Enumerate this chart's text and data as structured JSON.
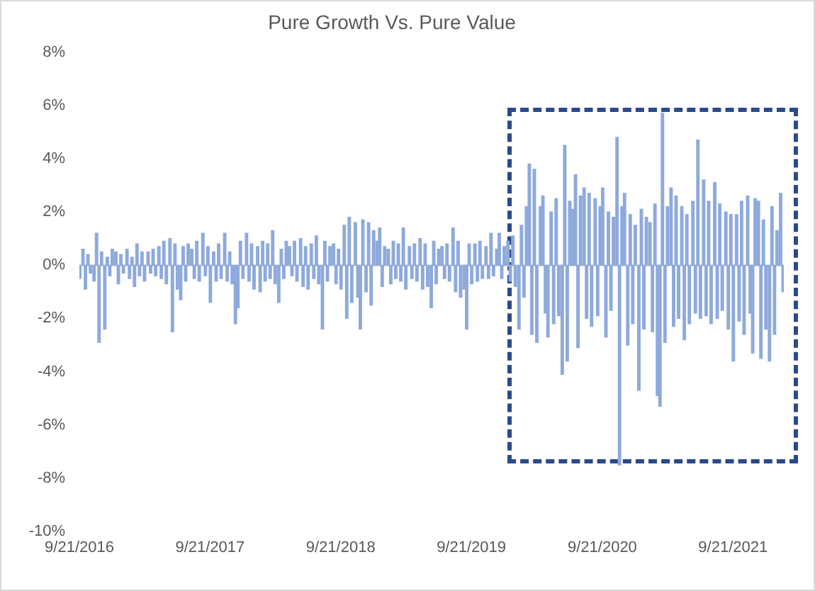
{
  "chart_data": {
    "type": "bar",
    "title": "Pure Growth Vs. Pure Value",
    "x": [
      "2016-09-22",
      "2016-10-01",
      "2016-10-08",
      "2016-10-15",
      "2016-10-22",
      "2016-11-01",
      "2016-11-08",
      "2016-11-15",
      "2016-11-22",
      "2016-12-01",
      "2016-12-08",
      "2016-12-15",
      "2016-12-22",
      "2017-01-01",
      "2017-01-08",
      "2017-01-15",
      "2017-01-22",
      "2017-02-01",
      "2017-02-08",
      "2017-02-15",
      "2017-02-22",
      "2017-03-01",
      "2017-03-08",
      "2017-03-15",
      "2017-03-22",
      "2017-04-01",
      "2017-04-08",
      "2017-04-15",
      "2017-04-22",
      "2017-05-01",
      "2017-05-08",
      "2017-05-15",
      "2017-05-22",
      "2017-06-01",
      "2017-06-08",
      "2017-06-15",
      "2017-06-22",
      "2017-07-01",
      "2017-07-08",
      "2017-07-15",
      "2017-07-22",
      "2017-08-01",
      "2017-08-08",
      "2017-08-15",
      "2017-08-22",
      "2017-09-01",
      "2017-09-08",
      "2017-09-15",
      "2017-09-22",
      "2017-10-01",
      "2017-10-08",
      "2017-10-15",
      "2017-10-22",
      "2017-11-01",
      "2017-11-08",
      "2017-11-15",
      "2017-11-22",
      "2017-12-01",
      "2017-12-08",
      "2017-12-15",
      "2017-12-22",
      "2018-01-01",
      "2018-01-08",
      "2018-01-15",
      "2018-01-22",
      "2018-02-01",
      "2018-02-08",
      "2018-02-15",
      "2018-02-22",
      "2018-03-01",
      "2018-03-08",
      "2018-03-15",
      "2018-03-22",
      "2018-04-01",
      "2018-04-08",
      "2018-04-15",
      "2018-04-22",
      "2018-05-01",
      "2018-05-08",
      "2018-05-15",
      "2018-05-22",
      "2018-06-01",
      "2018-06-08",
      "2018-06-15",
      "2018-06-22",
      "2018-07-01",
      "2018-07-08",
      "2018-07-15",
      "2018-07-22",
      "2018-08-01",
      "2018-08-08",
      "2018-08-15",
      "2018-08-22",
      "2018-09-01",
      "2018-09-08",
      "2018-09-15",
      "2018-09-22",
      "2018-10-01",
      "2018-10-08",
      "2018-10-15",
      "2018-10-22",
      "2018-11-01",
      "2018-11-08",
      "2018-11-15",
      "2018-11-22",
      "2018-12-01",
      "2018-12-08",
      "2018-12-15",
      "2018-12-22",
      "2019-01-01",
      "2019-01-08",
      "2019-01-15",
      "2019-01-22",
      "2019-02-01",
      "2019-02-08",
      "2019-02-15",
      "2019-02-22",
      "2019-03-01",
      "2019-03-08",
      "2019-03-15",
      "2019-03-22",
      "2019-04-01",
      "2019-04-08",
      "2019-04-15",
      "2019-04-22",
      "2019-05-01",
      "2019-05-08",
      "2019-05-15",
      "2019-05-22",
      "2019-06-01",
      "2019-06-08",
      "2019-06-15",
      "2019-06-22",
      "2019-07-01",
      "2019-07-08",
      "2019-07-15",
      "2019-07-22",
      "2019-08-01",
      "2019-08-08",
      "2019-08-15",
      "2019-08-22",
      "2019-09-01",
      "2019-09-08",
      "2019-09-15",
      "2019-09-22",
      "2019-10-01",
      "2019-10-08",
      "2019-10-15",
      "2019-10-22",
      "2019-11-01",
      "2019-11-08",
      "2019-11-15",
      "2019-11-22",
      "2019-12-01",
      "2019-12-08",
      "2019-12-15",
      "2019-12-22",
      "2020-01-01",
      "2020-01-08",
      "2020-01-15",
      "2020-01-22",
      "2020-02-01",
      "2020-02-08",
      "2020-02-15",
      "2020-02-22",
      "2020-03-01",
      "2020-03-08",
      "2020-03-15",
      "2020-03-22",
      "2020-04-01",
      "2020-04-08",
      "2020-04-15",
      "2020-04-22",
      "2020-05-01",
      "2020-05-08",
      "2020-05-15",
      "2020-05-22",
      "2020-06-01",
      "2020-06-08",
      "2020-06-15",
      "2020-06-22",
      "2020-07-01",
      "2020-07-08",
      "2020-07-15",
      "2020-07-22",
      "2020-08-01",
      "2020-08-08",
      "2020-08-15",
      "2020-08-22",
      "2020-09-01",
      "2020-09-08",
      "2020-09-15",
      "2020-09-22",
      "2020-10-01",
      "2020-10-08",
      "2020-10-15",
      "2020-10-22",
      "2020-11-01",
      "2020-11-08",
      "2020-11-15",
      "2020-11-22",
      "2020-12-01",
      "2020-12-08",
      "2020-12-15",
      "2020-12-22",
      "2021-01-01",
      "2021-01-08",
      "2021-01-15",
      "2021-01-22",
      "2021-02-01",
      "2021-02-08",
      "2021-02-15",
      "2021-02-22",
      "2021-03-01",
      "2021-03-08",
      "2021-03-15",
      "2021-03-22",
      "2021-04-01",
      "2021-04-08",
      "2021-04-15",
      "2021-04-22",
      "2021-05-01",
      "2021-05-08",
      "2021-05-15",
      "2021-05-22",
      "2021-06-01",
      "2021-06-08",
      "2021-06-15",
      "2021-06-22",
      "2021-07-01",
      "2021-07-08",
      "2021-07-15",
      "2021-07-22",
      "2021-08-01",
      "2021-08-08",
      "2021-08-15",
      "2021-08-22",
      "2021-09-01",
      "2021-09-08",
      "2021-09-15",
      "2021-09-22",
      "2021-10-01",
      "2021-10-08",
      "2021-10-15",
      "2021-10-22",
      "2021-11-01",
      "2021-11-08",
      "2021-11-15",
      "2021-11-22",
      "2021-12-01",
      "2021-12-08",
      "2021-12-15",
      "2021-12-22",
      "2022-01-01",
      "2022-01-08",
      "2022-01-15",
      "2022-01-22",
      "2022-02-01",
      "2022-02-08"
    ],
    "values": [
      -0.5,
      0.6,
      -0.9,
      0.4,
      -0.3,
      -0.6,
      1.2,
      -2.9,
      0.5,
      -2.4,
      0.3,
      -0.4,
      0.6,
      0.5,
      -0.7,
      0.4,
      -0.3,
      0.6,
      -0.5,
      0.3,
      -0.8,
      0.8,
      -0.4,
      0.5,
      -0.6,
      0.5,
      -0.3,
      0.6,
      -0.4,
      0.7,
      -0.5,
      0.9,
      -0.7,
      1.0,
      -2.5,
      0.8,
      -0.9,
      -1.3,
      0.7,
      -0.6,
      0.8,
      0.6,
      -0.5,
      0.9,
      -0.6,
      1.2,
      -0.4,
      0.7,
      -1.4,
      0.5,
      -0.6,
      0.8,
      -0.5,
      1.2,
      -0.6,
      0.5,
      -0.7,
      -2.2,
      -1.6,
      0.9,
      -0.5,
      1.2,
      -0.6,
      0.8,
      -0.9,
      0.7,
      -1.0,
      0.9,
      -0.6,
      0.8,
      -0.5,
      1.3,
      -0.7,
      -1.4,
      0.6,
      -0.5,
      0.9,
      0.7,
      -0.4,
      0.9,
      -0.6,
      1.0,
      -0.8,
      0.7,
      -0.9,
      0.8,
      -0.5,
      1.1,
      -0.7,
      -2.4,
      0.9,
      -0.6,
      0.7,
      0.8,
      -0.7,
      0.6,
      -0.9,
      1.5,
      -2.0,
      1.8,
      -1.4,
      1.6,
      -1.2,
      -2.4,
      1.7,
      -1.0,
      1.6,
      -1.5,
      1.3,
      0.9,
      1.4,
      -0.8,
      0.7,
      0.6,
      -0.7,
      0.9,
      -0.5,
      0.8,
      -0.6,
      1.4,
      -0.9,
      0.7,
      -0.5,
      0.8,
      -0.6,
      1.0,
      -0.9,
      0.8,
      -0.8,
      -1.6,
      0.9,
      -0.7,
      0.6,
      0.7,
      -0.5,
      0.8,
      -0.6,
      1.4,
      -1.0,
      0.9,
      -1.2,
      -0.9,
      -2.4,
      0.8,
      -0.7,
      0.8,
      -0.6,
      0.9,
      -0.5,
      0.7,
      -0.5,
      1.2,
      -0.4,
      0.6,
      1.2,
      -0.5,
      0.7,
      0.9,
      -0.6,
      1.1,
      -0.8,
      -2.4,
      1.5,
      -1.2,
      2.2,
      3.8,
      -2.6,
      3.6,
      -2.9,
      2.2,
      2.6,
      -1.8,
      -2.7,
      2.0,
      -2.2,
      2.5,
      -1.9,
      -4.1,
      4.5,
      -3.6,
      2.4,
      2.1,
      3.4,
      -3.1,
      2.6,
      2.9,
      -2.0,
      2.7,
      -2.3,
      2.5,
      -1.9,
      2.2,
      2.9,
      -2.7,
      2.0,
      -1.7,
      1.8,
      4.8,
      -7.5,
      2.2,
      2.7,
      -3.0,
      1.9,
      -2.2,
      1.5,
      -4.7,
      2.1,
      -2.4,
      1.8,
      1.6,
      -2.5,
      2.3,
      -4.9,
      -5.3,
      5.7,
      -2.9,
      2.2,
      2.9,
      -2.3,
      2.6,
      -2.0,
      2.2,
      -2.8,
      1.9,
      -2.2,
      2.4,
      -1.8,
      4.7,
      -2.0,
      3.2,
      -1.9,
      2.4,
      -2.2,
      3.1,
      -2.0,
      2.3,
      -1.7,
      2.0,
      -2.4,
      1.9,
      -3.6,
      1.9,
      -2.1,
      2.4,
      -2.6,
      2.6,
      -1.8,
      -3.3,
      2.5,
      2.4,
      -3.5,
      1.7,
      -2.4,
      -3.6,
      2.2,
      -2.6,
      1.3,
      2.7,
      -1.0
    ],
    "color": "#8eaadb",
    "xlim": [
      "2016-09-21",
      "2022-02-10"
    ],
    "xticks": [
      {
        "value": "2016-09-21",
        "label": "9/21/2016"
      },
      {
        "value": "2017-09-21",
        "label": "9/21/2017"
      },
      {
        "value": "2018-09-21",
        "label": "9/21/2018"
      },
      {
        "value": "2019-09-21",
        "label": "9/21/2019"
      },
      {
        "value": "2020-09-21",
        "label": "9/21/2020"
      },
      {
        "value": "2021-09-21",
        "label": "9/21/2021"
      }
    ],
    "ylim": [
      -10,
      8
    ],
    "yticks": [
      {
        "value": -10,
        "label": "-10%"
      },
      {
        "value": -8,
        "label": "-8%"
      },
      {
        "value": -6,
        "label": "-6%"
      },
      {
        "value": -4,
        "label": "-4%"
      },
      {
        "value": -2,
        "label": "-2%"
      },
      {
        "value": 0,
        "label": "0%"
      },
      {
        "value": 2,
        "label": "2%"
      },
      {
        "value": 4,
        "label": "4%"
      },
      {
        "value": 6,
        "label": "6%"
      },
      {
        "value": 8,
        "label": "8%"
      }
    ],
    "ref_lines": [
      {
        "axis": "y",
        "value": 0,
        "color": "#d9d9d9"
      }
    ],
    "grid": false
  }
}
